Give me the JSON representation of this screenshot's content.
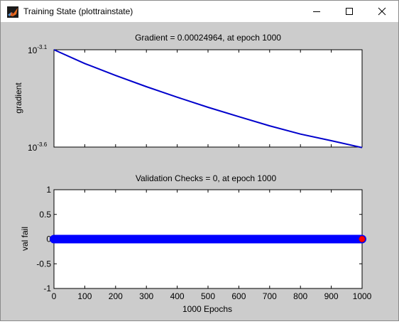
{
  "window": {
    "title": "Training State (plottrainstate)",
    "icon": "matlab-figure-icon",
    "controls": [
      "minimize",
      "maximize",
      "close"
    ]
  },
  "colors": {
    "figure_bg": "#cccccc",
    "axes_bg": "#ffffff",
    "gradient_line": "#0000cc",
    "val_fail_line": "#0000ff",
    "final_marker": "#ff0000"
  },
  "chart_data": [
    {
      "type": "line",
      "title": "Gradient = 0.00024964, at epoch 1000",
      "xlabel": "",
      "ylabel": "gradient",
      "yscale": "log",
      "xlim": [
        0,
        1000
      ],
      "ylim_log10": [
        -3.6,
        -3.1
      ],
      "yticks": [
        {
          "base": "10",
          "exp": "-3.1"
        },
        {
          "base": "10",
          "exp": "-3.6"
        }
      ],
      "show_x_tick_labels": false,
      "grid": false,
      "series": [
        {
          "x": [
            0,
            100,
            200,
            300,
            400,
            500,
            600,
            700,
            800,
            900,
            1000
          ],
          "y": [
            0.000794,
            0.000675,
            0.000586,
            0.000513,
            0.000453,
            0.000402,
            0.00036,
            0.000323,
            0.000293,
            0.000271,
            0.00024964
          ]
        }
      ]
    },
    {
      "type": "line",
      "title": "Validation Checks = 0, at epoch 1000",
      "xlabel": "1000 Epochs",
      "ylabel": "val fail",
      "xlim": [
        0,
        1000
      ],
      "ylim": [
        -1,
        1
      ],
      "xticks": [
        "0",
        "100",
        "200",
        "300",
        "400",
        "500",
        "600",
        "700",
        "800",
        "900",
        "1000"
      ],
      "yticks": [
        "1",
        "0.5",
        "0",
        "-0.5",
        "-1"
      ],
      "grid": false,
      "series": [
        {
          "x_range": [
            0,
            1000
          ],
          "value": 0,
          "marker": "circle",
          "final_point": {
            "x": 1000,
            "y": 0
          }
        }
      ]
    }
  ]
}
